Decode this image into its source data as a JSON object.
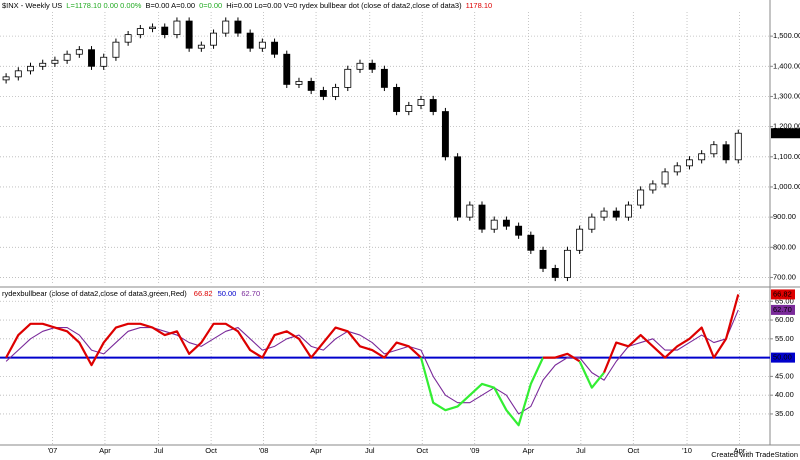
{
  "header": {
    "items": [
      {
        "text": "$INX - Weekly  US",
        "color": "#000000"
      },
      {
        "text": "L=1178.10 0.00 0.00%",
        "color": "#22aa22"
      },
      {
        "text": "B=0.00 A=0.00",
        "color": "#000000"
      },
      {
        "text": "0=0.00",
        "color": "#22aa22"
      },
      {
        "text": "Hi=0.00 Lo=0.00 V=0 rydex bullbear dot (close of data2,close of data3)",
        "color": "#000000"
      },
      {
        "text": "1178.10",
        "color": "#dd0000"
      }
    ]
  },
  "footer": "Created with TradeStation",
  "chart_data": [
    {
      "type": "candlestick",
      "open": [
        1355,
        1365,
        1385,
        1400,
        1410,
        1420,
        1440,
        1455,
        1400,
        1430,
        1480,
        1505,
        1525,
        1530,
        1505,
        1550,
        1460,
        1470,
        1510,
        1550,
        1510,
        1460,
        1480,
        1440,
        1340,
        1350,
        1320,
        1300,
        1330,
        1390,
        1410,
        1390,
        1330,
        1250,
        1270,
        1290,
        1250,
        1100,
        900,
        940,
        860,
        890,
        870,
        840,
        790,
        730,
        700,
        790,
        860,
        900,
        920,
        900,
        940,
        990,
        1010,
        1050,
        1070,
        1090,
        1110,
        1140,
        1090
      ],
      "high": [
        1377,
        1397,
        1412,
        1422,
        1432,
        1452,
        1467,
        1467,
        1442,
        1492,
        1517,
        1537,
        1542,
        1542,
        1562,
        1562,
        1482,
        1522,
        1562,
        1562,
        1522,
        1492,
        1492,
        1452,
        1362,
        1362,
        1332,
        1342,
        1402,
        1422,
        1422,
        1402,
        1342,
        1282,
        1302,
        1302,
        1262,
        1112,
        952,
        952,
        902,
        902,
        882,
        852,
        802,
        742,
        802,
        872,
        912,
        932,
        932,
        952,
        1002,
        1022,
        1062,
        1082,
        1102,
        1122,
        1152,
        1152,
        1190
      ],
      "low": [
        1343,
        1353,
        1373,
        1388,
        1398,
        1408,
        1428,
        1388,
        1388,
        1418,
        1468,
        1493,
        1513,
        1493,
        1493,
        1448,
        1448,
        1458,
        1498,
        1498,
        1448,
        1448,
        1428,
        1328,
        1328,
        1308,
        1288,
        1288,
        1318,
        1378,
        1378,
        1318,
        1238,
        1238,
        1258,
        1238,
        1088,
        888,
        888,
        848,
        848,
        858,
        828,
        778,
        718,
        688,
        688,
        778,
        848,
        888,
        888,
        888,
        928,
        978,
        998,
        1038,
        1058,
        1078,
        1098,
        1078,
        1078
      ],
      "close": [
        1365,
        1385,
        1400,
        1410,
        1420,
        1440,
        1455,
        1400,
        1430,
        1480,
        1505,
        1525,
        1530,
        1505,
        1550,
        1460,
        1470,
        1510,
        1550,
        1510,
        1460,
        1480,
        1440,
        1340,
        1350,
        1320,
        1300,
        1330,
        1390,
        1410,
        1390,
        1330,
        1250,
        1270,
        1290,
        1250,
        1100,
        900,
        940,
        860,
        890,
        870,
        840,
        790,
        730,
        700,
        790,
        860,
        900,
        920,
        900,
        940,
        990,
        1010,
        1050,
        1070,
        1090,
        1110,
        1140,
        1090,
        1178.1
      ],
      "last_label": "1,178.10",
      "up_color": "#ffffff",
      "down_color": "#000000",
      "xlim": [
        -0.5,
        62.6
      ],
      "xticks": [
        {
          "value": 3.8,
          "label": "'07"
        },
        {
          "value": 8.1,
          "label": "Apr"
        },
        {
          "value": 12.5,
          "label": "Jul"
        },
        {
          "value": 16.8,
          "label": "Oct"
        },
        {
          "value": 21.1,
          "label": "'08"
        },
        {
          "value": 25.4,
          "label": "Apr"
        },
        {
          "value": 29.8,
          "label": "Jul"
        },
        {
          "value": 34.1,
          "label": "Oct"
        },
        {
          "value": 38.4,
          "label": "'09"
        },
        {
          "value": 42.8,
          "label": "Apr"
        },
        {
          "value": 47.1,
          "label": "Jul"
        },
        {
          "value": 51.4,
          "label": "Oct"
        },
        {
          "value": 55.8,
          "label": "'10"
        },
        {
          "value": 60.1,
          "label": "Apr"
        }
      ],
      "ylim": [
        675,
        1580
      ],
      "yticks": [
        {
          "value": 700,
          "label": "700.00"
        },
        {
          "value": 800,
          "label": "800.00"
        },
        {
          "value": 900,
          "label": "900.00"
        },
        {
          "value": 1000,
          "label": "1,000.00"
        },
        {
          "value": 1100,
          "label": "1,100.00"
        },
        {
          "value": 1200,
          "label": "1,200.00"
        },
        {
          "value": 1300,
          "label": "1,300.00"
        },
        {
          "value": 1400,
          "label": "1,400.00"
        },
        {
          "value": 1500,
          "label": "1,500.00"
        }
      ],
      "grid": true
    },
    {
      "type": "line",
      "title": "rydexbullbear (close of data2,close of data3,green,Red)",
      "series": [
        {
          "color": "#dd0000",
          "color_below": "#33ee33",
          "last_label": "66.82",
          "values": [
            50,
            56,
            59,
            59,
            58,
            57,
            54,
            48,
            54,
            58,
            59,
            59,
            58,
            56,
            57,
            51,
            54,
            59,
            59,
            57,
            52,
            50,
            56,
            57,
            55,
            50,
            54,
            58,
            57,
            53,
            52,
            50,
            54,
            53,
            50,
            38,
            36,
            37,
            40,
            43,
            42,
            36,
            32,
            43,
            50,
            50,
            51,
            49,
            42,
            46,
            54,
            53,
            56,
            53,
            50,
            53,
            55,
            58,
            50,
            55,
            66.82
          ]
        },
        {
          "color": "#7a2a9a",
          "last_label": "62.70",
          "values": [
            49,
            52,
            55,
            57,
            58,
            58,
            56,
            52,
            51,
            54,
            57,
            58,
            58,
            57,
            56,
            54,
            53,
            55,
            57,
            58,
            55,
            52,
            53,
            55,
            56,
            53,
            52,
            55,
            57,
            56,
            54,
            51,
            52,
            53,
            52,
            45,
            40,
            38,
            38,
            40,
            42,
            40,
            35,
            37,
            44,
            48,
            50,
            50,
            46,
            44,
            49,
            53,
            54,
            55,
            52,
            52,
            54,
            56,
            54,
            55,
            62.7
          ]
        }
      ],
      "hline": {
        "value": 50,
        "label": "50.00",
        "color": "#0000cc"
      },
      "ylim": [
        27,
        68
      ],
      "yticks": [
        {
          "value": 35,
          "label": "35.00"
        },
        {
          "value": 40,
          "label": "40.00"
        },
        {
          "value": 45,
          "label": "45.00"
        },
        {
          "value": 55,
          "label": "55.00"
        },
        {
          "value": 60,
          "label": "60.00"
        },
        {
          "value": 65,
          "label": "65.00"
        }
      ],
      "grid": true
    }
  ]
}
